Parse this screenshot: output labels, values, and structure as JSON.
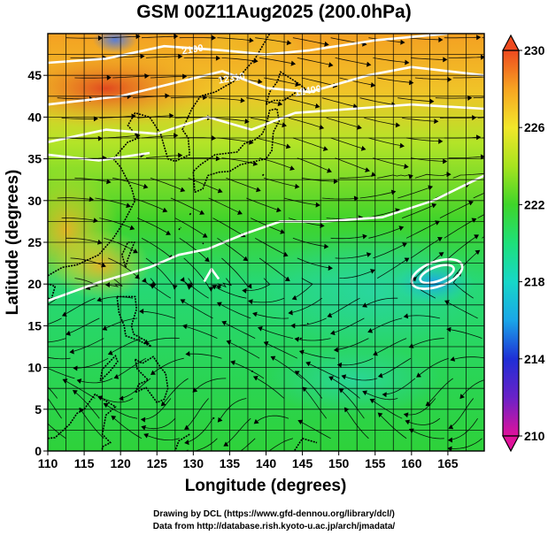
{
  "title": "GSM 00Z11Aug2025 (200.0hPa)",
  "axes": {
    "xlabel": "Longitude (degrees)",
    "ylabel": "Latitude  (degrees)",
    "x_ticks": [
      "110",
      "115",
      "120",
      "125",
      "130",
      "135",
      "140",
      "145",
      "150",
      "155",
      "160",
      "165"
    ],
    "y_ticks": [
      "0",
      "5",
      "10",
      "15",
      "20",
      "25",
      "30",
      "35",
      "40",
      "45"
    ],
    "xlim": [
      110,
      170
    ],
    "ylim": [
      0,
      50
    ]
  },
  "colorbar": {
    "ticks": [
      "230",
      "226",
      "222",
      "218",
      "214",
      "210"
    ],
    "min": 210,
    "max": 230,
    "stops": [
      "#e0129b",
      "#6a22c8",
      "#1f2fd6",
      "#1aa6e8",
      "#17d7c8",
      "#1ee07a",
      "#3fd52a",
      "#a7e31f",
      "#f2e72a",
      "#f7a422",
      "#ee4a1f"
    ]
  },
  "contour_labels": [
    "2100",
    "12310",
    "12400"
  ],
  "credits": {
    "line1": "Drawing by DCL (https://www.gfd-dennou.org/library/dcl/)",
    "line2": "Data from http://database.rish.kyoto-u.ac.jp/arch/jmadata/"
  }
}
